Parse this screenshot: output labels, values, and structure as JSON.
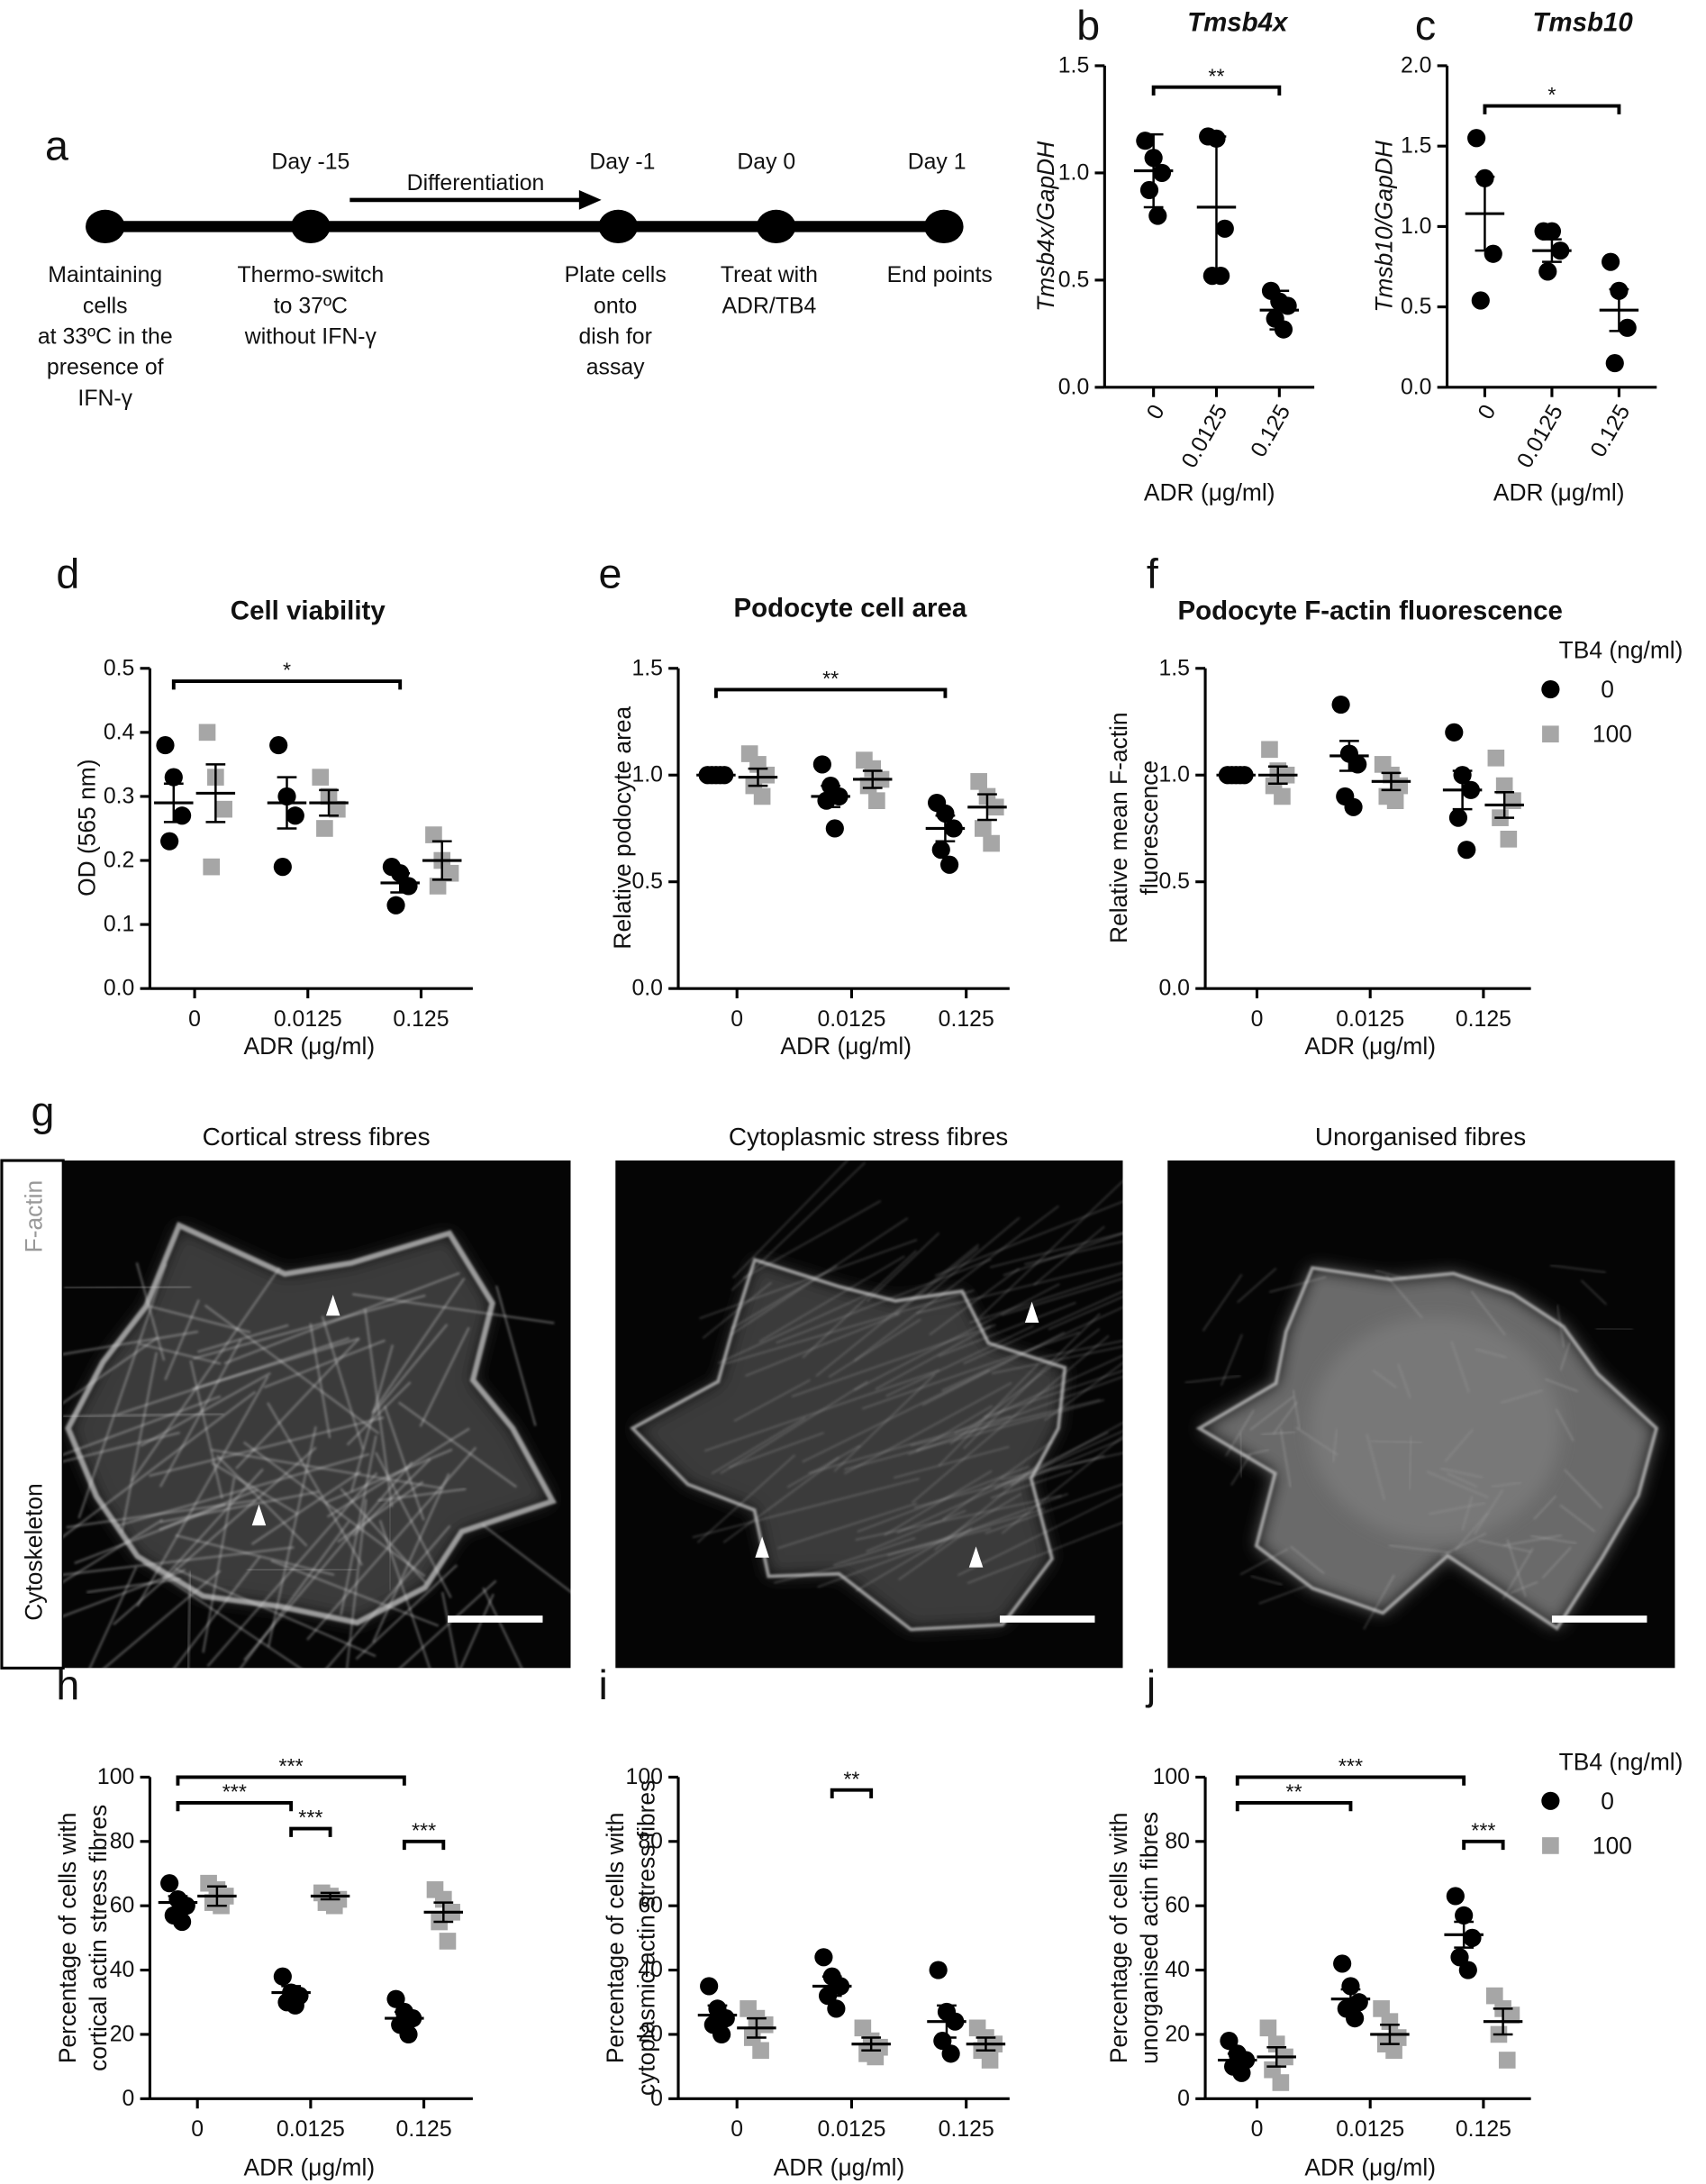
{
  "timeline": {
    "panel": "a",
    "days": [
      "Day -15",
      "Day -1",
      "Day 0",
      "Day 1"
    ],
    "arrow_label": "Differentiation",
    "steps": [
      [
        "Maintaining",
        "cells",
        "at 33ºC in the",
        "presence of",
        "IFN-γ"
      ],
      [
        "Thermo-switch",
        "to 37ºC",
        "without IFN-γ"
      ],
      [
        "Plate cells",
        "onto",
        "dish for",
        "assay"
      ],
      [
        "Treat with",
        "ADR/TB4"
      ],
      [
        "End points"
      ]
    ]
  },
  "micrographs": {
    "panel": "g",
    "titles": [
      "Cortical stress fibres",
      "Cytoplasmic stress fibres",
      "Unorganised fibres"
    ],
    "side_labels": [
      "F-actin",
      "Cytoskeleton"
    ]
  },
  "chart_data": [
    {
      "panel": "b",
      "type": "dot",
      "title": "Tmsb4x",
      "italic": true,
      "ylabel": "Tmsb4x/GapDH",
      "xlabel": "ADR (μg/ml)",
      "categories": [
        "0",
        "0.0125",
        "0.125"
      ],
      "color": "#000000",
      "marker": "circle",
      "values": [
        [
          1.15,
          1.07,
          1.0,
          0.92,
          0.8
        ],
        [
          1.17,
          1.16,
          0.74,
          0.52,
          0.52
        ],
        [
          0.45,
          0.4,
          0.38,
          0.32,
          0.27
        ]
      ],
      "means": [
        1.01,
        0.84,
        0.36
      ],
      "errors": [
        0.17,
        0.33,
        0.09
      ],
      "ylim": [
        0,
        1.5
      ],
      "yticks": [
        {
          "value": 0,
          "label": "0.0"
        },
        0.5,
        {
          "value": 1,
          "label": "1.0"
        },
        1.5
      ],
      "annotations": [
        {
          "text": "**",
          "y": 1.4,
          "from": {
            "category": "0"
          },
          "to": {
            "category": "0.125"
          }
        }
      ]
    },
    {
      "panel": "c",
      "type": "dot",
      "title": "Tmsb10",
      "italic": true,
      "ylabel": "Tmsb10/GapDH",
      "xlabel": "ADR (μg/ml)",
      "categories": [
        "0",
        "0.0125",
        "0.125"
      ],
      "color": "#000000",
      "marker": "circle",
      "values": [
        [
          1.55,
          1.3,
          0.83,
          0.54
        ],
        [
          0.97,
          0.97,
          0.85,
          0.72
        ],
        [
          0.78,
          0.6,
          0.37,
          0.15
        ]
      ],
      "means": [
        1.08,
        0.85,
        0.48
      ],
      "errors": [
        0.23,
        0.07,
        0.13
      ],
      "ylim": [
        0,
        2
      ],
      "yticks": [
        {
          "value": 0,
          "label": "0.0"
        },
        0.5,
        {
          "value": 1,
          "label": "1.0"
        },
        1.5,
        {
          "value": 2,
          "label": "2.0"
        }
      ],
      "annotations": [
        {
          "text": "*",
          "y": 1.75,
          "from": {
            "category": "0"
          },
          "to": {
            "category": "0.125"
          }
        }
      ]
    },
    {
      "panel": "d",
      "type": "dot",
      "title": "Cell viability",
      "ylabel": "OD (565 nm)",
      "xlabel": "ADR (μg/ml)",
      "categories": [
        "0",
        "0.0125",
        "0.125"
      ],
      "series": [
        {
          "color": "#000000",
          "marker": "circle",
          "values": [
            [
              0.38,
              0.33,
              0.27,
              0.23
            ],
            [
              0.38,
              0.3,
              0.27,
              0.19
            ],
            [
              0.19,
              0.18,
              0.16,
              0.13
            ]
          ],
          "means": [
            0.29,
            0.29,
            0.165
          ],
          "errors": [
            0.03,
            0.04,
            0.015
          ]
        },
        {
          "color": "#a6a6a6",
          "marker": "square",
          "values": [
            [
              0.4,
              0.33,
              0.28,
              0.19
            ],
            [
              0.33,
              0.3,
              0.28,
              0.25
            ],
            [
              0.24,
              0.2,
              0.18,
              0.16
            ]
          ],
          "means": [
            0.305,
            0.29,
            0.2
          ],
          "errors": [
            0.045,
            0.02,
            0.03
          ]
        }
      ],
      "ylim": [
        0,
        0.5
      ],
      "yticks": [
        {
          "value": 0,
          "label": "0.0"
        },
        0.1,
        0.2,
        0.3,
        0.4,
        0.5
      ],
      "annotations": [
        {
          "text": "*",
          "y": 0.48,
          "from": {
            "category": "0",
            "series": 0
          },
          "to": {
            "category": "0.125",
            "series": 0
          }
        }
      ]
    },
    {
      "panel": "e",
      "type": "dot",
      "title": "Podocyte cell area",
      "ylabel": "Relative podocyte area",
      "xlabel": "ADR (μg/ml)",
      "categories": [
        "0",
        "0.0125",
        "0.125"
      ],
      "series": [
        {
          "color": "#000000",
          "marker": "circle",
          "values": [
            [
              1,
              1,
              1,
              1,
              1
            ],
            [
              1.05,
              0.95,
              0.9,
              0.88,
              0.75
            ],
            [
              0.87,
              0.82,
              0.75,
              0.65,
              0.58
            ]
          ],
          "means": [
            1,
            0.9,
            0.75
          ],
          "errors": [
            0,
            0.05,
            0.06
          ]
        },
        {
          "color": "#a6a6a6",
          "marker": "square",
          "values": [
            [
              1.1,
              1.05,
              1.0,
              0.95,
              0.9
            ],
            [
              1.07,
              1.03,
              0.98,
              0.95,
              0.88
            ],
            [
              0.97,
              0.9,
              0.85,
              0.75,
              0.68
            ]
          ],
          "means": [
            0.99,
            0.98,
            0.85
          ],
          "errors": [
            0.04,
            0.04,
            0.06
          ]
        }
      ],
      "ylim": [
        0,
        1.5
      ],
      "yticks": [
        {
          "value": 0,
          "label": "0.0"
        },
        0.5,
        {
          "value": 1,
          "label": "1.0"
        },
        1.5
      ],
      "annotations": [
        {
          "text": "**",
          "y": 1.4,
          "from": {
            "category": "0",
            "series": 0
          },
          "to": {
            "category": "0.125",
            "series": 0
          }
        }
      ]
    },
    {
      "panel": "f",
      "type": "dot",
      "title": "Podocyte F-actin fluorescence",
      "ylabel": [
        "Relative mean F-actin",
        "fluorescence"
      ],
      "xlabel": "ADR (μg/ml)",
      "categories": [
        "0",
        "0.0125",
        "0.125"
      ],
      "legend": true,
      "legend_title": "TB4 (ng/ml)",
      "series": [
        {
          "name": "0",
          "color": "#000000",
          "marker": "circle",
          "values": [
            [
              1,
              1,
              1,
              1,
              1
            ],
            [
              1.33,
              1.1,
              1.05,
              0.9,
              0.85
            ],
            [
              1.2,
              1.0,
              0.93,
              0.8,
              0.65
            ]
          ],
          "means": [
            1,
            1.09,
            0.93
          ],
          "errors": [
            0,
            0.07,
            0.09
          ]
        },
        {
          "name": "100",
          "color": "#a6a6a6",
          "marker": "square",
          "values": [
            [
              1.12,
              1.02,
              1.0,
              0.95,
              0.9
            ],
            [
              1.05,
              1.0,
              0.95,
              0.9,
              0.88
            ],
            [
              1.08,
              0.95,
              0.88,
              0.8,
              0.7
            ]
          ],
          "means": [
            1.0,
            0.97,
            0.86
          ],
          "errors": [
            0.04,
            0.04,
            0.06
          ]
        }
      ],
      "ylim": [
        0,
        1.5
      ],
      "yticks": [
        {
          "value": 0,
          "label": "0.0"
        },
        0.5,
        {
          "value": 1,
          "label": "1.0"
        },
        1.5
      ]
    },
    {
      "panel": "h",
      "type": "dot",
      "ylabel": [
        "Percentage of cells with",
        "cortical actin stress fibres"
      ],
      "xlabel": "ADR (μg/ml)",
      "categories": [
        "0",
        "0.0125",
        "0.125"
      ],
      "series": [
        {
          "color": "#000000",
          "marker": "circle",
          "values": [
            [
              67,
              62,
              60,
              57,
              55
            ],
            [
              38,
              33,
              32,
              30,
              29
            ],
            [
              31,
              27,
              25,
              23,
              20
            ]
          ],
          "means": [
            61,
            33,
            25
          ],
          "errors": [
            2,
            2,
            2
          ]
        },
        {
          "color": "#a6a6a6",
          "marker": "square",
          "values": [
            [
              67,
              65,
              63,
              61,
              60
            ],
            [
              64,
              63,
              62,
              61,
              60
            ],
            [
              65,
              62,
              58,
              55,
              49
            ]
          ],
          "means": [
            63,
            63,
            58
          ],
          "errors": [
            3,
            1,
            3
          ]
        }
      ],
      "ylim": [
        0,
        100
      ],
      "yticks": [
        0,
        20,
        40,
        60,
        80,
        100
      ],
      "annotations": [
        {
          "text": "***",
          "y": 100,
          "from": {
            "category": "0",
            "series": 0
          },
          "to": {
            "category": "0.125",
            "series": 0
          }
        },
        {
          "text": "***",
          "y": 92,
          "from": {
            "category": "0",
            "series": 0
          },
          "to": {
            "category": "0.0125",
            "series": 0
          }
        },
        {
          "text": "***",
          "y": 84,
          "from": {
            "category": "0.0125",
            "series": 0
          },
          "to": {
            "category": "0.0125",
            "series": 1
          }
        },
        {
          "text": "***",
          "y": 80,
          "from": {
            "category": "0.125",
            "series": 0
          },
          "to": {
            "category": "0.125",
            "series": 1
          }
        }
      ]
    },
    {
      "panel": "i",
      "type": "dot",
      "ylabel": [
        "Percentage of cells with",
        "cytoplasmic actin stress fibres"
      ],
      "xlabel": "ADR (μg/ml)",
      "categories": [
        "0",
        "0.0125",
        "0.125"
      ],
      "series": [
        {
          "color": "#000000",
          "marker": "circle",
          "values": [
            [
              35,
              28,
              25,
              23,
              20
            ],
            [
              44,
              38,
              35,
              32,
              28
            ],
            [
              40,
              27,
              24,
              18,
              14
            ]
          ],
          "means": [
            26,
            35,
            24
          ],
          "errors": [
            3,
            3,
            5
          ]
        },
        {
          "color": "#a6a6a6",
          "marker": "square",
          "values": [
            [
              28,
              25,
              23,
              19,
              15
            ],
            [
              22,
              18,
              16,
              14,
              13
            ],
            [
              22,
              19,
              17,
              15,
              12
            ]
          ],
          "means": [
            22,
            17,
            17
          ],
          "errors": [
            3,
            2,
            2
          ]
        }
      ],
      "ylim": [
        0,
        100
      ],
      "yticks": [
        0,
        20,
        40,
        60,
        80,
        100
      ],
      "annotations": [
        {
          "text": "**",
          "y": 96,
          "from": {
            "category": "0.0125",
            "series": 0
          },
          "to": {
            "category": "0.0125",
            "series": 1
          }
        }
      ]
    },
    {
      "panel": "j",
      "type": "dot",
      "ylabel": [
        "Percentage of cells with",
        "unorganised actin fibres"
      ],
      "xlabel": "ADR (μg/ml)",
      "categories": [
        "0",
        "0.0125",
        "0.125"
      ],
      "legend": true,
      "legend_title": "TB4 (ng/ml)",
      "series": [
        {
          "name": "0",
          "color": "#000000",
          "marker": "circle",
          "values": [
            [
              18,
              14,
              12,
              10,
              8
            ],
            [
              42,
              35,
              30,
              28,
              25
            ],
            [
              63,
              57,
              50,
              44,
              40
            ]
          ],
          "means": [
            12,
            31,
            51
          ],
          "errors": [
            2,
            3,
            4
          ]
        },
        {
          "name": "100",
          "color": "#a6a6a6",
          "marker": "square",
          "values": [
            [
              22,
              17,
              13,
              9,
              5
            ],
            [
              28,
              24,
              19,
              17,
              15
            ],
            [
              32,
              28,
              26,
              20,
              12
            ]
          ],
          "means": [
            13,
            20,
            24
          ],
          "errors": [
            3,
            3,
            4
          ]
        }
      ],
      "ylim": [
        0,
        100
      ],
      "yticks": [
        0,
        20,
        40,
        60,
        80,
        100
      ],
      "annotations": [
        {
          "text": "***",
          "y": 100,
          "from": {
            "category": "0",
            "series": 0
          },
          "to": {
            "category": "0.125",
            "series": 0
          }
        },
        {
          "text": "**",
          "y": 92,
          "from": {
            "category": "0",
            "series": 0
          },
          "to": {
            "category": "0.0125",
            "series": 0
          }
        },
        {
          "text": "***",
          "y": 80,
          "from": {
            "category": "0.125",
            "series": 0
          },
          "to": {
            "category": "0.125",
            "series": 1
          }
        }
      ]
    }
  ]
}
